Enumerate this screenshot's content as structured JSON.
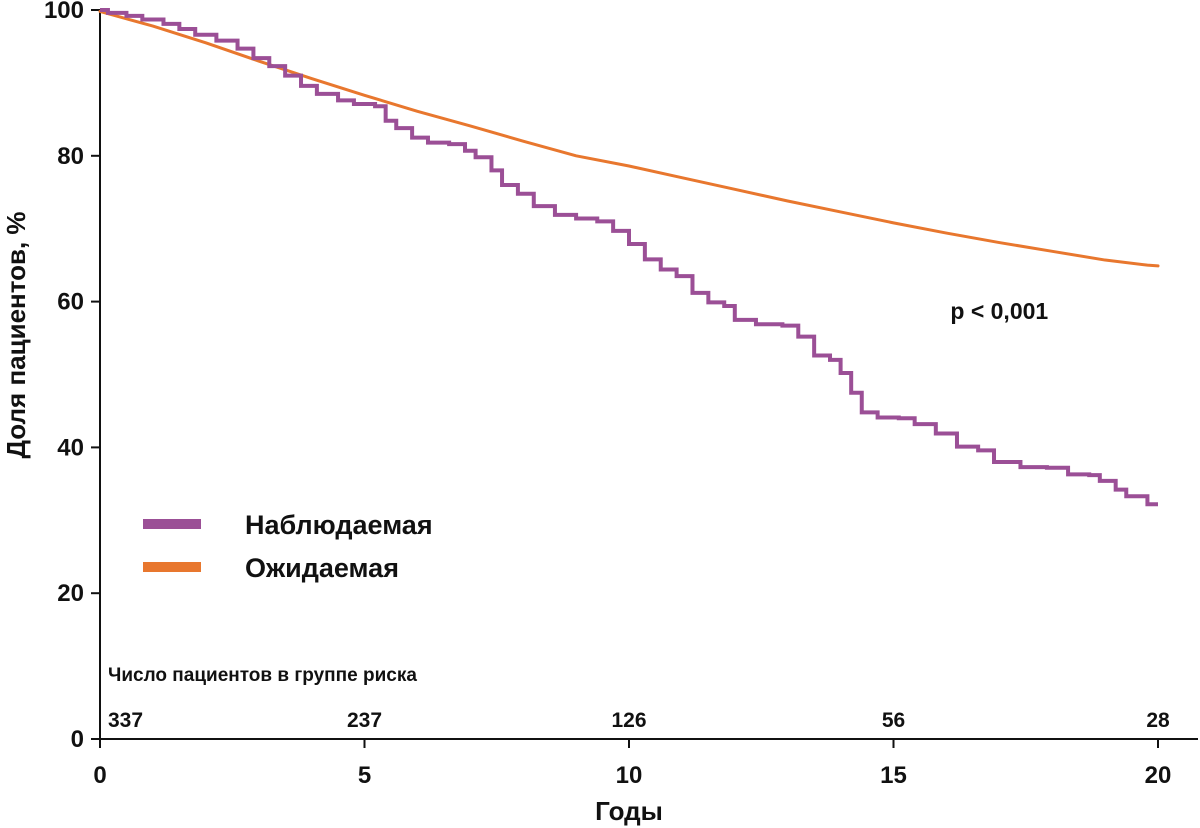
{
  "chart_data": {
    "type": "line",
    "title": "",
    "xlabel": "Годы",
    "ylabel": "Доля пациентов, %",
    "xlim": [
      0,
      20
    ],
    "ylim": [
      0,
      100
    ],
    "x_ticks": [
      0,
      5,
      10,
      15,
      20
    ],
    "y_ticks": [
      0,
      20,
      40,
      60,
      80,
      100
    ],
    "grid": false,
    "legend_position": "left-bottom",
    "series": [
      {
        "name": "Наблюдаемая",
        "color": "#9b4f96",
        "style": "step",
        "points": [
          [
            0,
            100
          ],
          [
            0.15,
            99.6
          ],
          [
            0.5,
            99.2
          ],
          [
            0.8,
            98.7
          ],
          [
            1.2,
            98.1
          ],
          [
            1.5,
            97.4
          ],
          [
            1.8,
            96.6
          ],
          [
            2.2,
            95.8
          ],
          [
            2.6,
            94.7
          ],
          [
            2.9,
            93.4
          ],
          [
            3.2,
            92.3
          ],
          [
            3.5,
            91.0
          ],
          [
            3.8,
            89.6
          ],
          [
            4.1,
            88.5
          ],
          [
            4.5,
            87.6
          ],
          [
            4.8,
            87.1
          ],
          [
            5.2,
            86.8
          ],
          [
            5.4,
            84.8
          ],
          [
            5.6,
            83.8
          ],
          [
            5.9,
            82.5
          ],
          [
            6.2,
            81.8
          ],
          [
            6.6,
            81.6
          ],
          [
            6.9,
            80.7
          ],
          [
            7.1,
            79.8
          ],
          [
            7.4,
            78.0
          ],
          [
            7.6,
            76.0
          ],
          [
            7.9,
            74.8
          ],
          [
            8.2,
            73.1
          ],
          [
            8.6,
            71.9
          ],
          [
            9.0,
            71.4
          ],
          [
            9.4,
            71.0
          ],
          [
            9.7,
            69.7
          ],
          [
            10.0,
            67.9
          ],
          [
            10.3,
            65.8
          ],
          [
            10.6,
            64.4
          ],
          [
            10.9,
            63.5
          ],
          [
            11.2,
            61.2
          ],
          [
            11.5,
            59.9
          ],
          [
            11.8,
            59.4
          ],
          [
            12.0,
            57.5
          ],
          [
            12.4,
            56.9
          ],
          [
            12.9,
            56.7
          ],
          [
            13.2,
            55.2
          ],
          [
            13.5,
            52.6
          ],
          [
            13.8,
            52.0
          ],
          [
            14.0,
            50.2
          ],
          [
            14.2,
            47.5
          ],
          [
            14.4,
            44.8
          ],
          [
            14.7,
            44.1
          ],
          [
            15.1,
            44.0
          ],
          [
            15.4,
            43.2
          ],
          [
            15.8,
            41.9
          ],
          [
            16.2,
            40.1
          ],
          [
            16.6,
            39.6
          ],
          [
            16.9,
            38.0
          ],
          [
            17.4,
            37.3
          ],
          [
            17.9,
            37.2
          ],
          [
            18.3,
            36.3
          ],
          [
            18.7,
            36.2
          ],
          [
            18.9,
            35.4
          ],
          [
            19.2,
            34.2
          ],
          [
            19.4,
            33.3
          ],
          [
            19.8,
            32.2
          ],
          [
            20,
            32.2
          ]
        ]
      },
      {
        "name": "Ожидаемая",
        "color": "#e8772e",
        "style": "line",
        "points": [
          [
            0,
            99.8
          ],
          [
            1,
            97.8
          ],
          [
            2,
            95.5
          ],
          [
            3,
            93.0
          ],
          [
            4,
            90.6
          ],
          [
            5,
            88.3
          ],
          [
            6,
            86.1
          ],
          [
            7,
            84.1
          ],
          [
            8,
            82.0
          ],
          [
            9,
            80.0
          ],
          [
            10,
            78.6
          ],
          [
            11,
            77.0
          ],
          [
            12,
            75.4
          ],
          [
            13,
            73.8
          ],
          [
            14,
            72.3
          ],
          [
            15,
            70.8
          ],
          [
            16,
            69.4
          ],
          [
            17,
            68.1
          ],
          [
            18,
            66.9
          ],
          [
            19,
            65.7
          ],
          [
            19.8,
            65.0
          ],
          [
            20,
            64.9
          ]
        ]
      }
    ],
    "annotations": {
      "p_value": "p < 0,001",
      "p_value_x": 17.0,
      "p_value_y": 57.6
    },
    "risk_table": {
      "title": "Число пациентов в группе риска",
      "entries": [
        {
          "x": 0,
          "label": "337"
        },
        {
          "x": 5,
          "label": "237"
        },
        {
          "x": 10,
          "label": "126"
        },
        {
          "x": 15,
          "label": "56"
        },
        {
          "x": 20,
          "label": "28"
        }
      ]
    }
  }
}
